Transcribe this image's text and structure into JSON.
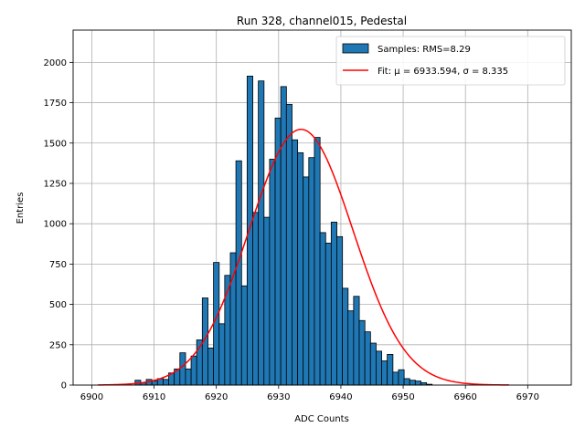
{
  "chart_data": {
    "type": "bar",
    "title": "Run 328, channel015, Pedestal",
    "xlabel": "ADC Counts",
    "ylabel": "Entries",
    "xlim": [
      6897,
      6977
    ],
    "ylim": [
      0,
      2200
    ],
    "xticks": [
      6900,
      6910,
      6920,
      6930,
      6940,
      6950,
      6960,
      6970
    ],
    "yticks": [
      0,
      250,
      500,
      750,
      1000,
      1250,
      1500,
      1750,
      2000
    ],
    "grid": true,
    "legend_position": "top-right",
    "histogram": {
      "name": "Samples: RMS=8.29",
      "color": "#1f77b4",
      "edgecolor": "#000000",
      "bin_width": 0.914,
      "bins": [
        {
          "x": 6907.4,
          "y": 30
        },
        {
          "x": 6908.3,
          "y": 15
        },
        {
          "x": 6909.2,
          "y": 35
        },
        {
          "x": 6910.1,
          "y": 25
        },
        {
          "x": 6911.0,
          "y": 40
        },
        {
          "x": 6911.9,
          "y": 35
        },
        {
          "x": 6912.8,
          "y": 75
        },
        {
          "x": 6913.7,
          "y": 100
        },
        {
          "x": 6914.6,
          "y": 200
        },
        {
          "x": 6915.5,
          "y": 100
        },
        {
          "x": 6916.4,
          "y": 180
        },
        {
          "x": 6917.3,
          "y": 280
        },
        {
          "x": 6918.2,
          "y": 540
        },
        {
          "x": 6919.1,
          "y": 230
        },
        {
          "x": 6920.0,
          "y": 760
        },
        {
          "x": 6920.9,
          "y": 380
        },
        {
          "x": 6921.8,
          "y": 680
        },
        {
          "x": 6922.7,
          "y": 820
        },
        {
          "x": 6923.6,
          "y": 1390
        },
        {
          "x": 6924.5,
          "y": 615
        },
        {
          "x": 6925.4,
          "y": 1915
        },
        {
          "x": 6926.3,
          "y": 1070
        },
        {
          "x": 6927.2,
          "y": 1885
        },
        {
          "x": 6928.1,
          "y": 1040
        },
        {
          "x": 6929.0,
          "y": 1400
        },
        {
          "x": 6929.9,
          "y": 1655
        },
        {
          "x": 6930.8,
          "y": 1850
        },
        {
          "x": 6931.7,
          "y": 1740
        },
        {
          "x": 6932.6,
          "y": 1520
        },
        {
          "x": 6933.5,
          "y": 1440
        },
        {
          "x": 6934.4,
          "y": 1290
        },
        {
          "x": 6935.3,
          "y": 1410
        },
        {
          "x": 6936.2,
          "y": 1535
        },
        {
          "x": 6937.1,
          "y": 945
        },
        {
          "x": 6938.0,
          "y": 880
        },
        {
          "x": 6938.9,
          "y": 1010
        },
        {
          "x": 6939.8,
          "y": 920
        },
        {
          "x": 6940.7,
          "y": 600
        },
        {
          "x": 6941.6,
          "y": 460
        },
        {
          "x": 6942.5,
          "y": 550
        },
        {
          "x": 6943.4,
          "y": 400
        },
        {
          "x": 6944.3,
          "y": 330
        },
        {
          "x": 6945.2,
          "y": 260
        },
        {
          "x": 6946.1,
          "y": 210
        },
        {
          "x": 6947.0,
          "y": 150
        },
        {
          "x": 6947.9,
          "y": 190
        },
        {
          "x": 6948.8,
          "y": 80
        },
        {
          "x": 6949.7,
          "y": 95
        },
        {
          "x": 6950.6,
          "y": 40
        },
        {
          "x": 6951.5,
          "y": 30
        },
        {
          "x": 6952.4,
          "y": 25
        },
        {
          "x": 6953.3,
          "y": 15
        },
        {
          "x": 6954.2,
          "y": 5
        }
      ]
    },
    "fit": {
      "name": "Fit: μ = 6933.594, σ = 8.335",
      "color": "#ff0000",
      "mu": 6933.594,
      "sigma": 8.335,
      "amplitude": 1585,
      "x_range": [
        6901,
        6967
      ]
    }
  }
}
